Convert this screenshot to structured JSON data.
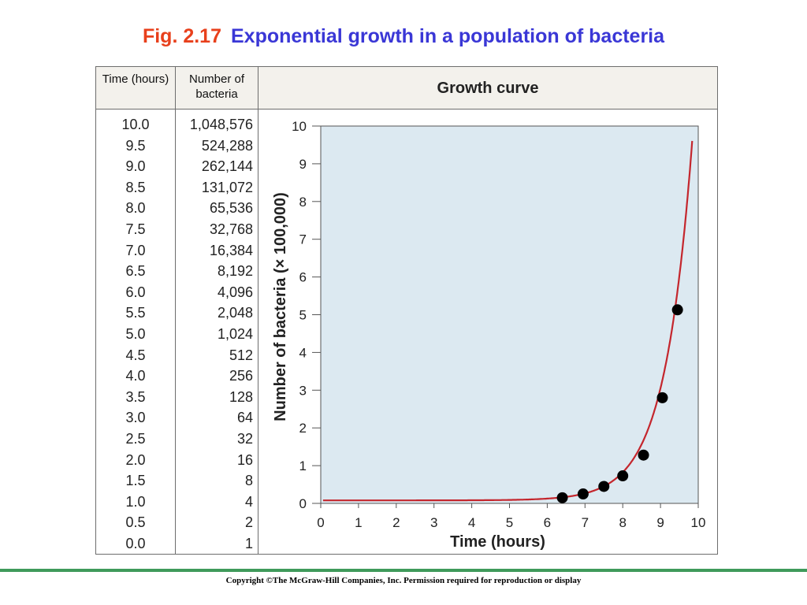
{
  "title": {
    "fig_label": "Fig. 2.17",
    "text": "Exponential growth in a population of bacteria"
  },
  "table": {
    "headers": {
      "time": "Time (hours)",
      "count": "Number of bacteria"
    },
    "time": [
      "10.0",
      "9.5",
      "9.0",
      "8.5",
      "8.0",
      "7.5",
      "7.0",
      "6.5",
      "6.0",
      "5.5",
      "5.0",
      "4.5",
      "4.0",
      "3.5",
      "3.0",
      "2.5",
      "2.0",
      "1.5",
      "1.0",
      "0.5",
      "0.0"
    ],
    "count": [
      "1,048,576",
      "524,288",
      "262,144",
      "131,072",
      "65,536",
      "32,768",
      "16,384",
      "8,192",
      "4,096",
      "2,048",
      "1,024",
      "512",
      "256",
      "128",
      "64",
      "32",
      "16",
      "8",
      "4",
      "2",
      "1"
    ]
  },
  "chart_data": {
    "type": "line",
    "title": "Growth curve",
    "xlabel": "Time (hours)",
    "ylabel": "Number of bacteria (× 100,000)",
    "xlim": [
      0,
      10
    ],
    "ylim": [
      0,
      10
    ],
    "xticks": [
      "0",
      "1",
      "2",
      "3",
      "4",
      "5",
      "6",
      "7",
      "8",
      "9",
      "10"
    ],
    "yticks": [
      "0",
      "1",
      "2",
      "3",
      "4",
      "5",
      "6",
      "7",
      "8",
      "9",
      "10"
    ],
    "points": [
      {
        "x": 6.4,
        "y": 0.15
      },
      {
        "x": 6.95,
        "y": 0.25
      },
      {
        "x": 7.5,
        "y": 0.45
      },
      {
        "x": 8.0,
        "y": 0.73
      },
      {
        "x": 8.55,
        "y": 1.28
      },
      {
        "x": 9.05,
        "y": 2.8
      },
      {
        "x": 9.45,
        "y": 5.13
      }
    ],
    "curve": {
      "base": 0.08,
      "doubling_hours": 0.5,
      "x_end": 9.85
    },
    "background_color": "#dce9f1",
    "curve_color": "#c4262d",
    "marker_color": "#000000"
  },
  "footer": {
    "copyright": "Copyright ©The McGraw-Hill Companies, Inc. Permission required for reproduction or display"
  }
}
